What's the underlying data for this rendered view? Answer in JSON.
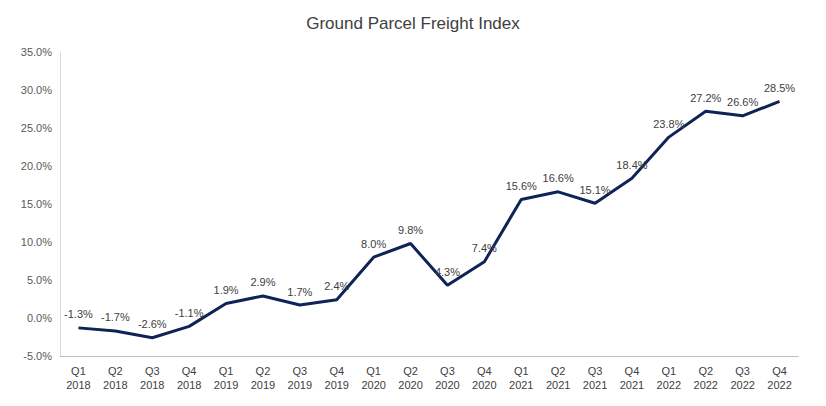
{
  "chart_data": {
    "type": "line",
    "title": "Ground Parcel Freight Index",
    "categories": [
      "Q1\n2018",
      "Q2\n2018",
      "Q3\n2018",
      "Q4\n2018",
      "Q1\n2019",
      "Q2\n2019",
      "Q3\n2019",
      "Q4\n2019",
      "Q1\n2020",
      "Q2\n2020",
      "Q3\n2020",
      "Q4\n2020",
      "Q1\n2021",
      "Q2\n2021",
      "Q3\n2021",
      "Q4\n2021",
      "Q1\n2022",
      "Q2\n2022",
      "Q3\n2022",
      "Q4\n2022"
    ],
    "values": [
      -1.3,
      -1.7,
      -2.6,
      -1.1,
      1.9,
      2.9,
      1.7,
      2.4,
      8.0,
      9.8,
      4.3,
      7.4,
      15.6,
      16.6,
      15.1,
      18.4,
      23.8,
      27.2,
      26.6,
      28.5
    ],
    "value_labels": [
      "-1.3%",
      "-1.7%",
      "-2.6%",
      "-1.1%",
      "1.9%",
      "2.9%",
      "1.7%",
      "2.4%",
      "8.0%",
      "9.8%",
      "4.3%",
      "7.4%",
      "15.6%",
      "16.6%",
      "15.1%",
      "18.4%",
      "23.8%",
      "27.2%",
      "26.6%",
      "28.5%"
    ],
    "color": "#0e2356",
    "ylim": [
      -5,
      35
    ],
    "yticks": [
      {
        "value": -5,
        "label": "-5.0%"
      },
      {
        "value": 0,
        "label": "0.0%"
      },
      {
        "value": 5,
        "label": "5.0%"
      },
      {
        "value": 10,
        "label": "10.0%"
      },
      {
        "value": 15,
        "label": "15.0%"
      },
      {
        "value": 20,
        "label": "20.0%"
      },
      {
        "value": 25,
        "label": "25.0%"
      },
      {
        "value": 30,
        "label": "30.0%"
      },
      {
        "value": 35,
        "label": "35.0%"
      }
    ],
    "grid": false,
    "data_labels": true
  }
}
